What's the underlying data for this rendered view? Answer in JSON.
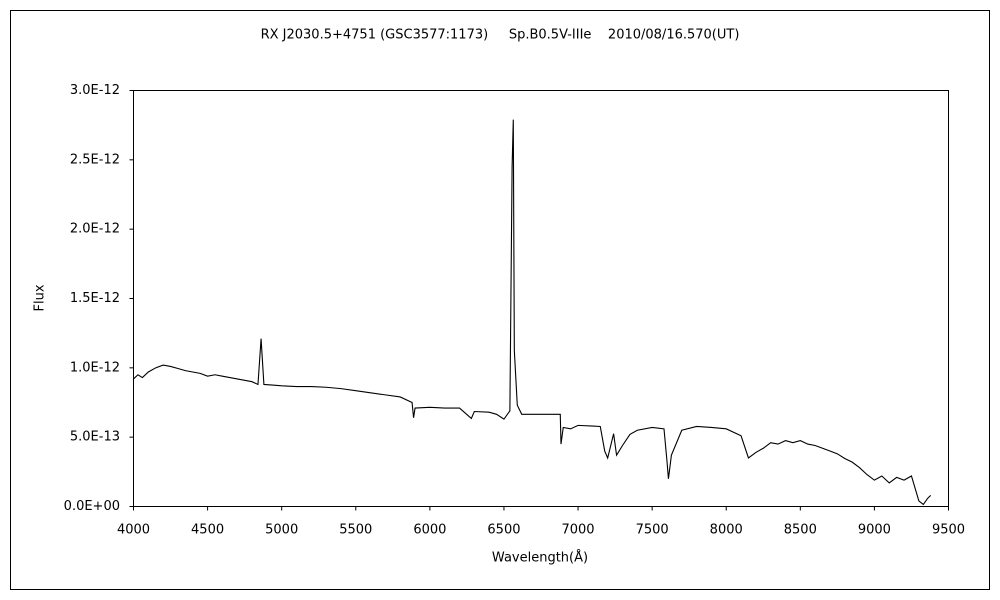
{
  "chart_data": {
    "type": "line",
    "title": "RX J2030.5+4751 (GSC3577:1173)     Sp.B0.5V-IIIe    2010/08/16.570(UT)",
    "x_label": "Wavelength(Å)",
    "y_label": "Flux",
    "color": "#000000",
    "x": [
      4000,
      4030,
      4060,
      4100,
      4150,
      4200,
      4250,
      4300,
      4350,
      4400,
      4450,
      4500,
      4550,
      4600,
      4650,
      4700,
      4750,
      4800,
      4840,
      4861,
      4880,
      4950,
      5000,
      5100,
      5200,
      5300,
      5400,
      5500,
      5600,
      5700,
      5800,
      5880,
      5890,
      5900,
      6000,
      6100,
      6200,
      6280,
      6300,
      6400,
      6450,
      6500,
      6540,
      6555,
      6563,
      6570,
      6590,
      6620,
      6700,
      6800,
      6880,
      6885,
      6900,
      6950,
      7000,
      7100,
      7150,
      7180,
      7200,
      7240,
      7260,
      7300,
      7350,
      7400,
      7500,
      7580,
      7600,
      7610,
      7630,
      7700,
      7800,
      7900,
      8000,
      8100,
      8150,
      8200,
      8250,
      8300,
      8350,
      8400,
      8450,
      8500,
      8550,
      8600,
      8650,
      8700,
      8750,
      8800,
      8850,
      8900,
      8950,
      9000,
      9050,
      9100,
      9150,
      9200,
      9250,
      9300,
      9330,
      9360,
      9380
    ],
    "values": [
      9.2e-13,
      9.5e-13,
      9.3e-13,
      9.7e-13,
      1e-12,
      1.02e-12,
      1.01e-12,
      9.95e-13,
      9.8e-13,
      9.7e-13,
      9.6e-13,
      9.4e-13,
      9.5e-13,
      9.4e-13,
      9.3e-13,
      9.2e-13,
      9.1e-13,
      9e-13,
      8.8e-13,
      1.21e-12,
      8.8e-13,
      8.75e-13,
      8.7e-13,
      8.65e-13,
      8.65e-13,
      8.6e-13,
      8.5e-13,
      8.35e-13,
      8.2e-13,
      8.05e-13,
      7.9e-13,
      7.5e-13,
      6.4e-13,
      7.1e-13,
      7.15e-13,
      7.1e-13,
      7.1e-13,
      6.35e-13,
      6.85e-13,
      6.8e-13,
      6.65e-13,
      6.3e-13,
      6.9e-13,
      2.45e-12,
      2.79e-12,
      1.125e-12,
      7.3e-13,
      6.65e-13,
      6.65e-13,
      6.65e-13,
      6.65e-13,
      4.5e-13,
      5.7e-13,
      5.6e-13,
      5.85e-13,
      5.8e-13,
      5.77e-13,
      4e-13,
      3.5e-13,
      5.25e-13,
      3.7e-13,
      4.4e-13,
      5.2e-13,
      5.5e-13,
      5.7e-13,
      5.6e-13,
      3.3e-13,
      2e-13,
      3.7e-13,
      5.5e-13,
      5.77e-13,
      5.7e-13,
      5.6e-13,
      5.1e-13,
      3.5e-13,
      3.9e-13,
      4.2e-13,
      4.6e-13,
      4.5e-13,
      4.75e-13,
      4.6e-13,
      4.75e-13,
      4.5e-13,
      4.4e-13,
      4.2e-13,
      4e-13,
      3.8e-13,
      3.46e-13,
      3.2e-13,
      2.8e-13,
      2.3e-13,
      1.9e-13,
      2.2e-13,
      1.7e-13,
      2.1e-13,
      1.9e-13,
      2.2e-13,
      4e-14,
      1.5e-14,
      6e-14,
      8e-14
    ],
    "xlim": [
      4000,
      9500
    ],
    "ylim": [
      0,
      3e-12
    ],
    "xticks": [
      4000,
      4500,
      5000,
      5500,
      6000,
      6500,
      7000,
      7500,
      8000,
      8500,
      9000,
      9500
    ],
    "yticks": [
      {
        "value": 0,
        "label": "0.0E+00"
      },
      {
        "value": 5e-13,
        "label": "5.0E-13"
      },
      {
        "value": 1e-12,
        "label": "1.0E-12"
      },
      {
        "value": 1.5e-12,
        "label": "1.5E-12"
      },
      {
        "value": 2e-12,
        "label": "2.0E-12"
      },
      {
        "value": 2.5e-12,
        "label": "2.5E-12"
      },
      {
        "value": 3e-12,
        "label": "3.0E-12"
      }
    ],
    "grid": false
  }
}
